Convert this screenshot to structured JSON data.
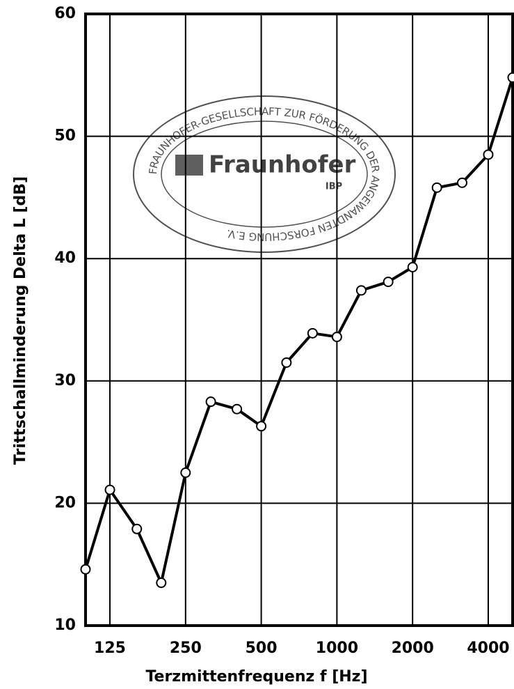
{
  "chart_data": {
    "type": "line",
    "xlabel": "Terzmittenfrequenz f [Hz]",
    "ylabel": "Trittschallminderung Delta L [dB]",
    "x": [
      100,
      125,
      160,
      200,
      250,
      315,
      400,
      500,
      630,
      800,
      1000,
      1250,
      1600,
      2000,
      2500,
      3150,
      4000,
      5000
    ],
    "series": [
      {
        "color": "#000000",
        "values": [
          14.6,
          21.1,
          17.9,
          13.5,
          22.5,
          28.3,
          27.7,
          26.3,
          31.5,
          33.9,
          33.6,
          37.4,
          38.1,
          39.3,
          45.8,
          46.2,
          48.5,
          54.8
        ]
      }
    ],
    "xscale": "log",
    "xlim": [
      100,
      5000
    ],
    "xticks": [
      125,
      250,
      500,
      1000,
      2000,
      4000
    ],
    "ylim": [
      10,
      60
    ],
    "yticks": [
      10,
      20,
      30,
      40,
      50,
      60
    ],
    "grid": true,
    "stamp": {
      "logo": "Fraunhofer",
      "unit": "IBP",
      "ring": "FRAUNHOFER-GESELLSCHAFT ZUR FÖRDERUNG DER ANGEWANDTEN FORSCHUNG E.V."
    }
  }
}
